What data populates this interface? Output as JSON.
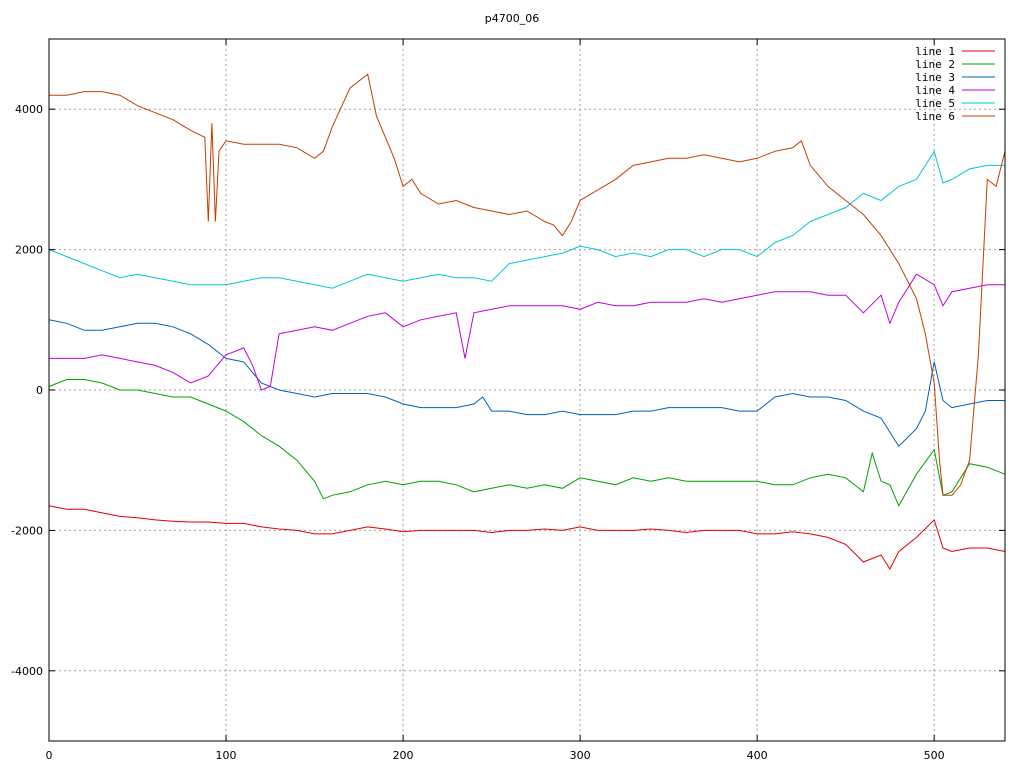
{
  "chart_data": {
    "type": "line",
    "title": "p4700_06",
    "xlabel": "",
    "ylabel": "",
    "xlim": [
      0,
      540
    ],
    "ylim": [
      -5000,
      5000
    ],
    "xticks": [
      0,
      100,
      200,
      300,
      400,
      500
    ],
    "yticks": [
      -4000,
      -2000,
      0,
      2000,
      4000
    ],
    "ytick_labels": [
      "-4000",
      "-2000",
      "0",
      "2000",
      "4000"
    ],
    "grid": true,
    "legend_position": "top-right",
    "series": [
      {
        "name": "line 1",
        "color": "#e00000",
        "x": [
          0,
          10,
          20,
          30,
          40,
          50,
          60,
          70,
          80,
          90,
          100,
          110,
          120,
          130,
          140,
          150,
          160,
          170,
          180,
          190,
          200,
          210,
          220,
          230,
          240,
          250,
          260,
          270,
          280,
          290,
          300,
          310,
          320,
          330,
          340,
          350,
          360,
          370,
          380,
          390,
          400,
          410,
          420,
          430,
          440,
          450,
          460,
          470,
          475,
          480,
          490,
          500,
          505,
          510,
          520,
          530,
          540
        ],
        "y": [
          -1650,
          -1700,
          -1700,
          -1750,
          -1800,
          -1820,
          -1850,
          -1870,
          -1880,
          -1880,
          -1900,
          -1900,
          -1950,
          -1980,
          -2000,
          -2050,
          -2050,
          -2000,
          -1950,
          -1980,
          -2020,
          -2000,
          -2000,
          -2000,
          -2000,
          -2030,
          -2000,
          -2000,
          -1980,
          -2000,
          -1950,
          -2000,
          -2000,
          -2000,
          -1980,
          -2000,
          -2030,
          -2000,
          -2000,
          -2000,
          -2050,
          -2050,
          -2020,
          -2050,
          -2100,
          -2200,
          -2450,
          -2350,
          -2550,
          -2300,
          -2100,
          -1850,
          -2250,
          -2300,
          -2250,
          -2250,
          -2300
        ]
      },
      {
        "name": "line 2",
        "color": "#00a000",
        "x": [
          0,
          10,
          20,
          30,
          40,
          50,
          60,
          70,
          80,
          90,
          100,
          110,
          120,
          130,
          140,
          150,
          155,
          160,
          170,
          180,
          190,
          200,
          210,
          220,
          230,
          240,
          250,
          260,
          270,
          280,
          290,
          300,
          310,
          320,
          330,
          340,
          350,
          360,
          370,
          380,
          390,
          400,
          410,
          420,
          430,
          440,
          450,
          460,
          465,
          470,
          475,
          480,
          490,
          500,
          505,
          510,
          520,
          530,
          540
        ],
        "y": [
          50,
          150,
          150,
          100,
          0,
          0,
          -50,
          -100,
          -100,
          -200,
          -300,
          -450,
          -650,
          -800,
          -1000,
          -1300,
          -1550,
          -1500,
          -1450,
          -1350,
          -1300,
          -1350,
          -1300,
          -1300,
          -1350,
          -1450,
          -1400,
          -1350,
          -1400,
          -1350,
          -1400,
          -1250,
          -1300,
          -1350,
          -1250,
          -1300,
          -1250,
          -1300,
          -1300,
          -1300,
          -1300,
          -1300,
          -1350,
          -1350,
          -1250,
          -1200,
          -1250,
          -1450,
          -900,
          -1300,
          -1350,
          -1650,
          -1200,
          -850,
          -1500,
          -1450,
          -1050,
          -1100,
          -1200
        ]
      },
      {
        "name": "line 3",
        "color": "#0060c0",
        "x": [
          0,
          10,
          20,
          30,
          40,
          50,
          60,
          70,
          80,
          90,
          100,
          110,
          120,
          130,
          140,
          150,
          160,
          170,
          180,
          190,
          200,
          210,
          220,
          230,
          240,
          245,
          250,
          260,
          270,
          280,
          290,
          300,
          310,
          320,
          330,
          340,
          350,
          360,
          370,
          380,
          390,
          400,
          410,
          420,
          430,
          440,
          450,
          460,
          470,
          475,
          480,
          490,
          495,
          500,
          505,
          510,
          520,
          530,
          540
        ],
        "y": [
          1000,
          950,
          850,
          850,
          900,
          950,
          950,
          900,
          800,
          650,
          450,
          400,
          100,
          0,
          -50,
          -100,
          -50,
          -50,
          -50,
          -100,
          -200,
          -250,
          -250,
          -250,
          -200,
          -100,
          -300,
          -300,
          -350,
          -350,
          -300,
          -350,
          -350,
          -350,
          -300,
          -300,
          -250,
          -250,
          -250,
          -250,
          -300,
          -300,
          -100,
          -50,
          -100,
          -100,
          -150,
          -300,
          -400,
          -600,
          -800,
          -550,
          -300,
          400,
          -150,
          -250,
          -200,
          -150,
          -150
        ]
      },
      {
        "name": "line 4",
        "color": "#c000e0",
        "x": [
          0,
          10,
          20,
          30,
          40,
          50,
          60,
          70,
          80,
          90,
          100,
          110,
          115,
          120,
          125,
          130,
          140,
          150,
          160,
          170,
          180,
          190,
          200,
          210,
          220,
          230,
          235,
          240,
          250,
          260,
          270,
          280,
          290,
          300,
          310,
          320,
          330,
          340,
          350,
          360,
          370,
          380,
          390,
          400,
          410,
          420,
          430,
          440,
          450,
          460,
          470,
          475,
          480,
          490,
          500,
          505,
          510,
          520,
          530,
          540
        ],
        "y": [
          450,
          450,
          450,
          500,
          450,
          400,
          350,
          250,
          100,
          200,
          500,
          600,
          350,
          0,
          50,
          800,
          850,
          900,
          850,
          950,
          1050,
          1100,
          900,
          1000,
          1050,
          1100,
          450,
          1100,
          1150,
          1200,
          1200,
          1200,
          1200,
          1150,
          1250,
          1200,
          1200,
          1250,
          1250,
          1250,
          1300,
          1250,
          1300,
          1350,
          1400,
          1400,
          1400,
          1350,
          1350,
          1100,
          1350,
          950,
          1250,
          1650,
          1500,
          1200,
          1400,
          1450,
          1500,
          1500
        ]
      },
      {
        "name": "line 5",
        "color": "#00c8d8",
        "x": [
          0,
          10,
          20,
          30,
          40,
          50,
          60,
          70,
          80,
          90,
          100,
          110,
          120,
          130,
          140,
          150,
          160,
          170,
          180,
          190,
          200,
          210,
          220,
          230,
          240,
          250,
          260,
          270,
          280,
          290,
          300,
          310,
          320,
          330,
          340,
          350,
          360,
          370,
          380,
          390,
          400,
          410,
          420,
          430,
          440,
          450,
          460,
          470,
          480,
          490,
          500,
          505,
          510,
          520,
          530,
          540
        ],
        "y": [
          2000,
          1900,
          1800,
          1700,
          1600,
          1650,
          1600,
          1550,
          1500,
          1500,
          1500,
          1550,
          1600,
          1600,
          1550,
          1500,
          1450,
          1550,
          1650,
          1600,
          1550,
          1600,
          1650,
          1600,
          1600,
          1550,
          1800,
          1850,
          1900,
          1950,
          2050,
          2000,
          1900,
          1950,
          1900,
          2000,
          2000,
          1900,
          2000,
          2000,
          1900,
          2100,
          2200,
          2400,
          2500,
          2600,
          2800,
          2700,
          2900,
          3000,
          3400,
          2950,
          3000,
          3150,
          3200,
          3200
        ]
      },
      {
        "name": "line 6",
        "color": "#c04000",
        "x": [
          0,
          10,
          20,
          30,
          40,
          50,
          60,
          70,
          80,
          88,
          90,
          92,
          94,
          96,
          100,
          110,
          120,
          130,
          140,
          150,
          155,
          160,
          170,
          180,
          185,
          190,
          195,
          200,
          205,
          210,
          220,
          230,
          240,
          250,
          260,
          270,
          280,
          285,
          290,
          295,
          300,
          310,
          320,
          330,
          340,
          350,
          360,
          370,
          380,
          390,
          400,
          410,
          420,
          425,
          430,
          440,
          450,
          460,
          470,
          480,
          490,
          495,
          500,
          503,
          505,
          510,
          515,
          520,
          525,
          530,
          535,
          540
        ],
        "y": [
          4200,
          4200,
          4250,
          4250,
          4200,
          4050,
          3950,
          3850,
          3700,
          3600,
          2400,
          3800,
          2400,
          3400,
          3550,
          3500,
          3500,
          3500,
          3450,
          3300,
          3400,
          3750,
          4300,
          4500,
          3900,
          3600,
          3300,
          2900,
          3000,
          2800,
          2650,
          2700,
          2600,
          2550,
          2500,
          2550,
          2400,
          2350,
          2200,
          2400,
          2700,
          2850,
          3000,
          3200,
          3250,
          3300,
          3300,
          3350,
          3300,
          3250,
          3300,
          3400,
          3450,
          3550,
          3200,
          2900,
          2700,
          2500,
          2200,
          1800,
          1300,
          800,
          100,
          -1000,
          -1500,
          -1500,
          -1350,
          -1000,
          500,
          3000,
          2900,
          3400
        ]
      }
    ]
  }
}
